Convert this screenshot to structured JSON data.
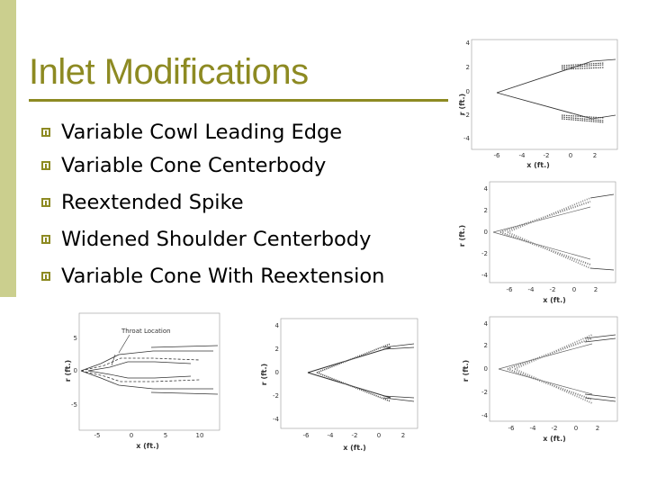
{
  "slide": {
    "title": "Inlet Modifications",
    "accent_color": "#8d8a22",
    "sidebar_color": "#cbcf8e",
    "bullet_icon": "square-bullet-icon",
    "bullets": [
      "Variable Cowl Leading Edge",
      "Variable Cone Centerbody",
      "Reextended Spike",
      "Widened Shoulder Centerbody",
      "Variable Cone With Reextension"
    ]
  },
  "figures": [
    {
      "id": "plot-top-right",
      "xlabel": "x (ft.)",
      "ylabel": "r (ft.)",
      "xticks": [
        "-6",
        "-4",
        "-2",
        "0",
        "2"
      ],
      "yticks": [
        "4",
        "2",
        "0",
        "-2",
        "-4"
      ]
    },
    {
      "id": "plot-mid-right",
      "xlabel": "x (ft.)",
      "ylabel": "r (ft.)",
      "xticks": [
        "-6",
        "-4",
        "-2",
        "0",
        "2"
      ],
      "yticks": [
        "4",
        "2",
        "0",
        "-2",
        "-4"
      ]
    },
    {
      "id": "plot-bottom-left",
      "xlabel": "x (ft.)",
      "ylabel": "r (ft.)",
      "xticks": [
        "-5",
        "0",
        "5",
        "10"
      ],
      "yticks": [
        "5",
        "0",
        "-5"
      ],
      "annotation": "Throat Location"
    },
    {
      "id": "plot-bottom-mid",
      "xlabel": "x (ft.)",
      "ylabel": "r (ft.)",
      "xticks": [
        "-6",
        "-4",
        "-2",
        "0",
        "2"
      ],
      "yticks": [
        "4",
        "2",
        "0",
        "-2",
        "-4"
      ]
    },
    {
      "id": "plot-bottom-right",
      "xlabel": "x (ft.)",
      "ylabel": "r (ft.)",
      "xticks": [
        "-6",
        "-4",
        "-2",
        "0",
        "2"
      ],
      "yticks": [
        "4",
        "2",
        "0",
        "-2",
        "-4"
      ]
    }
  ]
}
